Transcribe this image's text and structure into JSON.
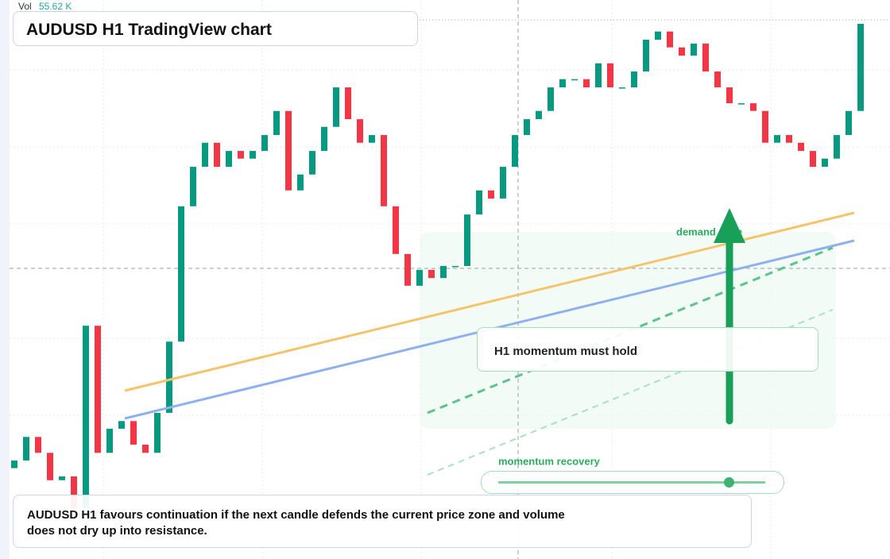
{
  "header": {
    "volume_label": "Vol",
    "volume_value": "55.62 K",
    "title": "AUDUSD H1 TradingView chart"
  },
  "annotations": {
    "callout": "H1 momentum must hold",
    "zone_label": "demand zone",
    "slider_label": "momentum recovery",
    "note": "AUDUSD H1 favours continuation if the next candle defends the current price zone and volume does not dry up into resistance."
  },
  "chart_data": {
    "type": "candlestick",
    "ylim": [
      0,
      100
    ],
    "up_color": "#089981",
    "down_color": "#f23645",
    "open": [
      16.0,
      17.4,
      21.7,
      18.8,
      13.8,
      14.5,
      8.7,
      42.0,
      18.8,
      23.2,
      24.6,
      20.3,
      18.8,
      26.1,
      39.1,
      63.8,
      71.0,
      75.4,
      71.0,
      73.9,
      72.5,
      73.9,
      76.8,
      81.2,
      66.7,
      69.6,
      73.9,
      78.3,
      85.5,
      79.7,
      75.4,
      76.8,
      63.8,
      55.1,
      49.3,
      52.2,
      50.7,
      52.9,
      52.9,
      62.3,
      66.7,
      65.2,
      71.0,
      76.8,
      79.7,
      81.2,
      85.5,
      87.0,
      87.0,
      85.5,
      89.9,
      85.5,
      85.5,
      88.4,
      94.2,
      95.7,
      92.8,
      91.3,
      93.5,
      88.4,
      85.5,
      82.6,
      82.6,
      81.2,
      75.4,
      76.8,
      75.4,
      73.9,
      71.0,
      72.5,
      76.8,
      81.2
    ],
    "close": [
      17.4,
      21.7,
      18.8,
      13.8,
      14.5,
      8.7,
      42.0,
      18.8,
      23.2,
      24.6,
      20.3,
      18.8,
      26.1,
      39.1,
      63.8,
      71.0,
      75.4,
      71.0,
      73.9,
      72.5,
      73.9,
      76.8,
      81.2,
      66.7,
      69.6,
      73.9,
      78.3,
      85.5,
      79.7,
      75.4,
      76.8,
      63.8,
      55.1,
      49.3,
      52.2,
      50.7,
      52.9,
      52.9,
      62.3,
      66.7,
      65.2,
      71.0,
      76.8,
      79.7,
      81.2,
      85.5,
      87.0,
      87.0,
      85.5,
      89.9,
      85.5,
      85.5,
      88.4,
      94.2,
      95.7,
      92.8,
      91.3,
      93.5,
      88.4,
      85.5,
      82.6,
      82.6,
      81.2,
      75.4,
      76.8,
      75.4,
      73.9,
      71.0,
      72.5,
      76.8,
      81.2,
      97.1
    ]
  }
}
